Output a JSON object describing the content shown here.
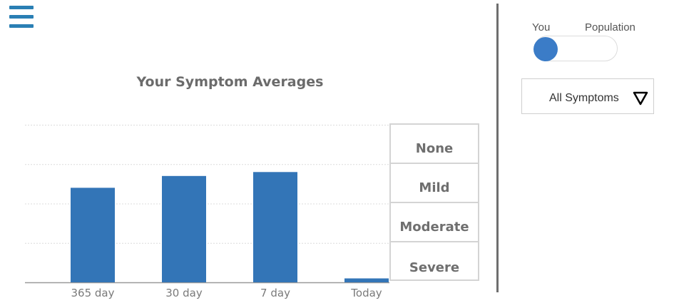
{
  "header": {
    "menu_icon": "hamburger-icon"
  },
  "chart_title": "Your Symptom Averages",
  "severity_levels": [
    "None",
    "Mild",
    "Moderate",
    "Severe"
  ],
  "toggle": {
    "left_label": "You",
    "right_label": "Population",
    "selected": "You"
  },
  "symptom_filter": {
    "selected": "All Symptoms",
    "icon": "triangle-down-icon"
  },
  "colors": {
    "bar": "#3375b7",
    "accent": "#2a7fb4",
    "toggle_knob": "#3b7cc7"
  },
  "chart_data": {
    "type": "bar",
    "title": "Your Symptom Averages",
    "categories": [
      "365 day",
      "30 day",
      "7 day",
      "Today"
    ],
    "values": [
      2.4,
      2.7,
      2.8,
      0.1
    ],
    "ylim": [
      0,
      4
    ],
    "y_tick_labels": [
      "None",
      "Mild",
      "Moderate",
      "Severe"
    ],
    "grid": true
  }
}
